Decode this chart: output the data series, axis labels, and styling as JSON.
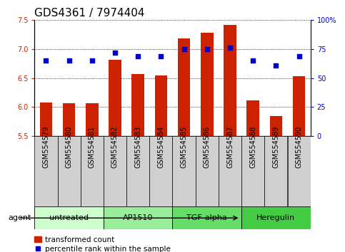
{
  "title": "GDS4361 / 7974404",
  "categories": [
    "GSM554579",
    "GSM554580",
    "GSM554581",
    "GSM554582",
    "GSM554583",
    "GSM554584",
    "GSM554585",
    "GSM554586",
    "GSM554587",
    "GSM554588",
    "GSM554589",
    "GSM554590"
  ],
  "bar_values": [
    6.08,
    6.07,
    6.07,
    6.82,
    6.57,
    6.55,
    7.18,
    7.28,
    7.42,
    6.12,
    5.85,
    6.53
  ],
  "percentile_values": [
    65,
    65,
    65,
    72,
    69,
    69,
    75,
    75,
    76,
    65,
    61,
    69
  ],
  "ylim_left": [
    5.5,
    7.5
  ],
  "ylim_right": [
    0,
    100
  ],
  "yticks_left": [
    5.5,
    6.0,
    6.5,
    7.0,
    7.5
  ],
  "yticks_right": [
    0,
    25,
    50,
    75,
    100
  ],
  "bar_color": "#cc2200",
  "dot_color": "#0000cc",
  "groups": [
    {
      "label": "untreated",
      "start": 0,
      "end": 3,
      "color": "#ccffcc"
    },
    {
      "label": "AP1510",
      "start": 3,
      "end": 6,
      "color": "#99ee99"
    },
    {
      "label": "TGF-alpha",
      "start": 6,
      "end": 9,
      "color": "#66dd66"
    },
    {
      "label": "Heregulin",
      "start": 9,
      "end": 12,
      "color": "#44cc44"
    }
  ],
  "xlabel_agent": "agent",
  "legend_bar_label": "transformed count",
  "legend_dot_label": "percentile rank within the sample",
  "title_fontsize": 11,
  "tick_fontsize": 7,
  "label_fontsize": 8,
  "group_fontsize": 8,
  "xtick_gray": "#d8d8d8",
  "right_tick_labels": [
    "0",
    "25",
    "50",
    "75",
    "100%"
  ]
}
